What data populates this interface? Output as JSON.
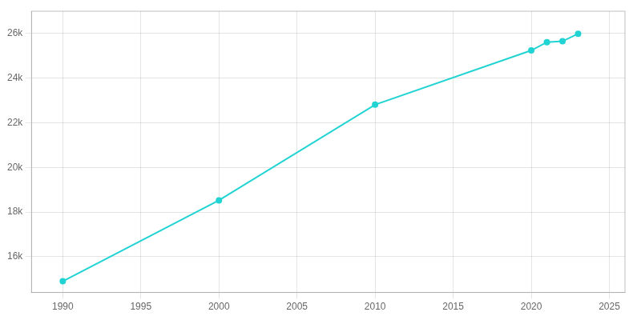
{
  "chart_data": {
    "type": "line",
    "x": [
      1990,
      2000,
      2010,
      2020,
      2021,
      2022,
      2023
    ],
    "values": [
      14901,
      18528,
      22814,
      25242,
      25613,
      25655,
      25990
    ],
    "color": "#22d3d3",
    "marker": "circle",
    "xlim": [
      1988,
      2026
    ],
    "xticks": [
      1990,
      1995,
      2000,
      2005,
      2010,
      2015,
      2020,
      2025
    ],
    "ylim": [
      14400,
      27000
    ],
    "yticks": [
      {
        "value": 16000,
        "label": "16k"
      },
      {
        "value": 18000,
        "label": "18k"
      },
      {
        "value": 20000,
        "label": "20k"
      },
      {
        "value": 22000,
        "label": "22k"
      },
      {
        "value": 24000,
        "label": "24k"
      },
      {
        "value": 26000,
        "label": "26k"
      }
    ],
    "grid": true
  }
}
